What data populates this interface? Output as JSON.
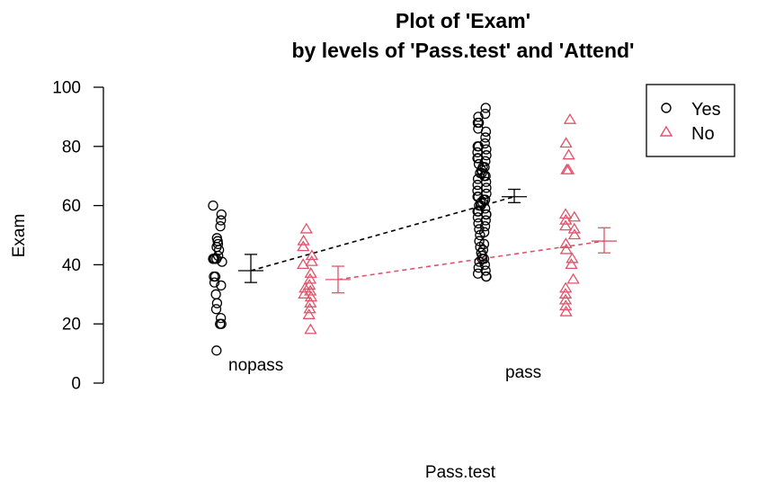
{
  "chart_data": {
    "type": "scatter",
    "title_line1": "Plot of 'Exam'",
    "title_line2": "by levels of 'Pass.test' and 'Attend'",
    "xlabel": "Pass.test",
    "ylabel": "Exam",
    "ylim": [
      0,
      100
    ],
    "y_ticks": [
      0,
      20,
      40,
      60,
      80,
      100
    ],
    "categories": [
      "nopass",
      "pass"
    ],
    "legend": {
      "position": "top-right",
      "entries": [
        "Yes",
        "No"
      ]
    },
    "colors": {
      "Yes": "#000000",
      "No": "#DF536B"
    },
    "series": [
      {
        "name": "Yes",
        "marker": "circle",
        "points": {
          "nopass": [
            11,
            20,
            20,
            22,
            25,
            27,
            30,
            33,
            34,
            36,
            36,
            41,
            42,
            42,
            42,
            42,
            43,
            45,
            46,
            47,
            48,
            49,
            53,
            55,
            57,
            60
          ],
          "pass": [
            36,
            36,
            37,
            38,
            39,
            40,
            41,
            42,
            42,
            43,
            44,
            45,
            46,
            47,
            48,
            50,
            51,
            52,
            53,
            54,
            55,
            56,
            57,
            57,
            58,
            58,
            59,
            60,
            60,
            61,
            61,
            62,
            62,
            63,
            63,
            64,
            65,
            66,
            67,
            68,
            69,
            70,
            70,
            71,
            71,
            72,
            73,
            73,
            74,
            75,
            76,
            76,
            77,
            78,
            79,
            80,
            80,
            81,
            83,
            85,
            86,
            88,
            88,
            90,
            91,
            93
          ]
        },
        "means": {
          "nopass": 38,
          "pass": 63
        },
        "ci_low": {
          "nopass": 34,
          "pass": 61
        },
        "ci_high": {
          "nopass": 43.5,
          "pass": 65.5
        }
      },
      {
        "name": "No",
        "marker": "triangle",
        "points": {
          "nopass": [
            18,
            23,
            25,
            27,
            29,
            30,
            31,
            32,
            33,
            35,
            37,
            40,
            41,
            43,
            46,
            48,
            52
          ],
          "pass": [
            24,
            26,
            28,
            30,
            32,
            35,
            40,
            42,
            45,
            47,
            50,
            52,
            53,
            55,
            56,
            57,
            72,
            72,
            77,
            81,
            89
          ]
        },
        "means": {
          "nopass": 35,
          "pass": 48
        },
        "ci_low": {
          "nopass": 30.5,
          "pass": 44
        },
        "ci_high": {
          "nopass": 39.5,
          "pass": 52.5
        }
      }
    ]
  }
}
